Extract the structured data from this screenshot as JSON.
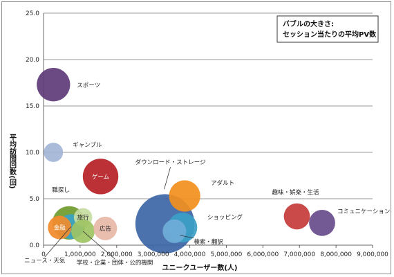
{
  "chart_data": {
    "type": "bubble",
    "title": "",
    "xlabel": "ユニークユーザー数(人)",
    "ylabel": "平均訪問回数(回)",
    "xlim": [
      0,
      9000000
    ],
    "ylim": [
      0,
      25
    ],
    "x_ticks": [
      "0",
      "1,000,000",
      "2,000,000",
      "3,000,000",
      "4,000,000",
      "5,000,000",
      "6,000,000",
      "7,000,000",
      "8,000,000",
      "9,000,000"
    ],
    "y_ticks": [
      "0.0",
      "5.0",
      "10.0",
      "15.0",
      "20.0",
      "25.0"
    ],
    "grid": "horizontal",
    "legend_note": {
      "line1": "バブルの大きさ:",
      "line2": "セッション当たりの平均PV数",
      "placement": "top-right"
    },
    "series": [
      {
        "label": "スポーツ",
        "x": 270000,
        "y": 17.3,
        "size": 6.5,
        "color": "#5e3b7a",
        "label_inside": false
      },
      {
        "label": "ギャンブル",
        "x": 270000,
        "y": 10.0,
        "size": 3.2,
        "color": "#a3b4d6",
        "label_inside": false
      },
      {
        "label": "ゲーム",
        "x": 1560000,
        "y": 7.4,
        "size": 7.0,
        "color": "#b51f24",
        "label_inside": true
      },
      {
        "label": "職探し",
        "x": 700000,
        "y": 2.4,
        "size": 6.5,
        "color": "#6f9a2c",
        "label_inside": false
      },
      {
        "label": "ニュース・天気",
        "x": 750000,
        "y": 2.0,
        "size": 4.5,
        "color": "#3aa3c6",
        "label_inside": false
      },
      {
        "label": "旅行",
        "x": 1080000,
        "y": 3.0,
        "size": 3.0,
        "color": "#c7dca2",
        "label_inside": true
      },
      {
        "label": "学校・企業・団体・公的機関",
        "x": 1080000,
        "y": 1.5,
        "size": 4.2,
        "color": "#9ec363",
        "label_inside": false
      },
      {
        "label": "金融",
        "x": 440000,
        "y": 1.9,
        "size": 4.2,
        "color": "#f28b2c",
        "label_inside": true
      },
      {
        "label": "広告",
        "x": 1690000,
        "y": 1.8,
        "size": 4.2,
        "color": "#e8b9a8",
        "label_inside": true
      },
      {
        "label": "ダウンロード・ストレージ",
        "x": 3320000,
        "y": 2.3,
        "size": 12.5,
        "color": "#3d66a6",
        "label_inside": false
      },
      {
        "label": "アダルト",
        "x": 3860000,
        "y": 5.3,
        "size": 6.0,
        "color": "#f28f1d",
        "label_inside": false
      },
      {
        "label": "ショッピング",
        "x": 3800000,
        "y": 1.9,
        "size": 5.6,
        "color": "#3ba0c6",
        "label_inside": false
      },
      {
        "label": "検索・翻訳",
        "x": 3580000,
        "y": 1.5,
        "size": 4.2,
        "color": "#6faed8",
        "label_inside": false
      },
      {
        "label": "趣味・娯楽・生活",
        "x": 6930000,
        "y": 3.1,
        "size": 4.8,
        "color": "#c5393a",
        "label_inside": false
      },
      {
        "label": "コミュニケーション",
        "x": 7620000,
        "y": 2.4,
        "size": 4.8,
        "color": "#674c8c",
        "label_inside": false
      }
    ]
  }
}
